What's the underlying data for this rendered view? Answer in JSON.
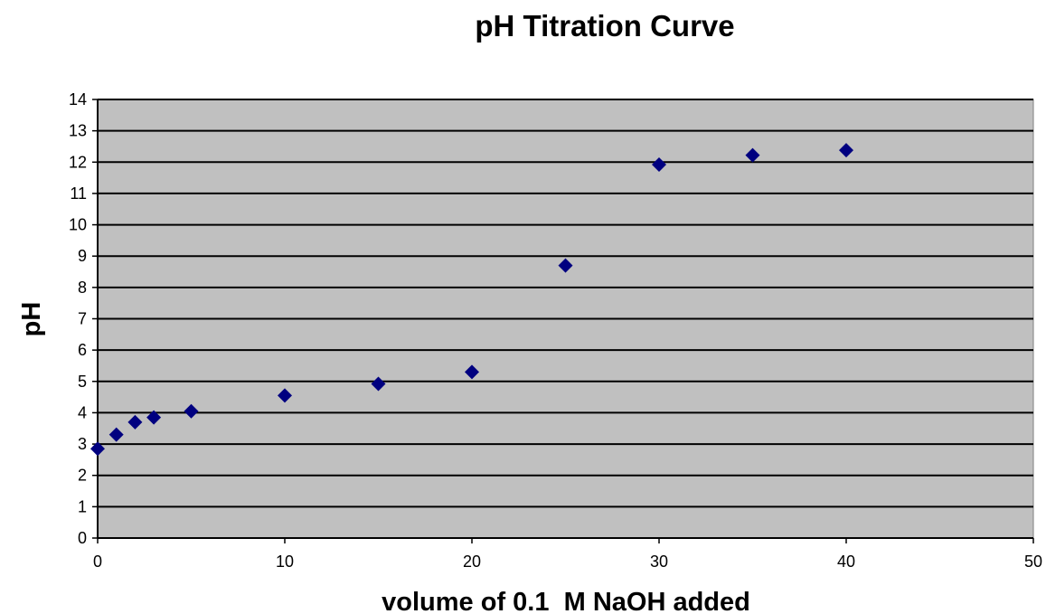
{
  "chart_data": {
    "type": "scatter",
    "title": "pH Titration Curve",
    "xlabel": "volume of 0.1  M NaOH added",
    "ylabel": "pH",
    "xlim": [
      0,
      50
    ],
    "ylim": [
      0,
      14
    ],
    "x_ticks": [
      0,
      10,
      20,
      30,
      40,
      50
    ],
    "y_ticks": [
      0,
      1,
      2,
      3,
      4,
      5,
      6,
      7,
      8,
      9,
      10,
      11,
      12,
      13,
      14
    ],
    "grid": "horizontal",
    "legend": "none",
    "series": [
      {
        "marker": "diamond",
        "x": [
          0,
          1,
          2,
          3,
          5,
          10,
          15,
          20,
          25,
          30,
          35,
          40
        ],
        "y": [
          2.85,
          3.3,
          3.7,
          3.85,
          4.05,
          4.55,
          4.92,
          5.3,
          8.7,
          11.92,
          12.22,
          12.38
        ]
      }
    ],
    "colors": {
      "plot_background": "#c0c0c0",
      "gridline": "#000000",
      "marker": "#000080"
    }
  }
}
